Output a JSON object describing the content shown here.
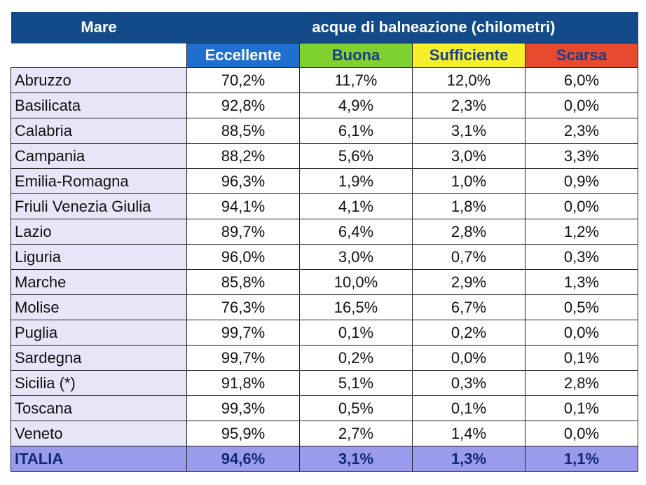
{
  "header": {
    "title": "Mare",
    "subtitle": "acque di balneazione (chilometri)"
  },
  "columns": [
    "Eccellente",
    "Buona",
    "Sufficiente",
    "Scarsa"
  ],
  "rows": [
    [
      "Abruzzo",
      "70,2%",
      "11,7%",
      "12,0%",
      "6,0%"
    ],
    [
      "Basilicata",
      "92,8%",
      "4,9%",
      "2,3%",
      "0,0%"
    ],
    [
      "Calabria",
      "88,5%",
      "6,1%",
      "3,1%",
      "2,3%"
    ],
    [
      "Campania",
      "88,2%",
      "5,6%",
      "3,0%",
      "3,3%"
    ],
    [
      "Emilia-Romagna",
      "96,3%",
      "1,9%",
      "1,0%",
      "0,9%"
    ],
    [
      "Friuli Venezia Giulia",
      "94,1%",
      "4,1%",
      "1,8%",
      "0,0%"
    ],
    [
      "Lazio",
      "89,7%",
      "6,4%",
      "2,8%",
      "1,2%"
    ],
    [
      "Liguria",
      "96,0%",
      "3,0%",
      "0,7%",
      "0,3%"
    ],
    [
      "Marche",
      "85,8%",
      "10,0%",
      "2,9%",
      "1,3%"
    ],
    [
      "Molise",
      "76,3%",
      "16,5%",
      "6,7%",
      "0,5%"
    ],
    [
      "Puglia",
      "99,7%",
      "0,1%",
      "0,2%",
      "0,0%"
    ],
    [
      "Sardegna",
      "99,7%",
      "0,2%",
      "0,0%",
      "0,1%"
    ],
    [
      "Sicilia (*)",
      "91,8%",
      "5,1%",
      "0,3%",
      "2,8%"
    ],
    [
      "Toscana",
      "99,3%",
      "0,5%",
      "0,1%",
      "0,1%"
    ],
    [
      "Veneto",
      "95,9%",
      "2,7%",
      "1,4%",
      "0,0%"
    ]
  ],
  "total": [
    "ITALIA",
    "94,6%",
    "3,1%",
    "1,3%",
    "1,1%"
  ]
}
